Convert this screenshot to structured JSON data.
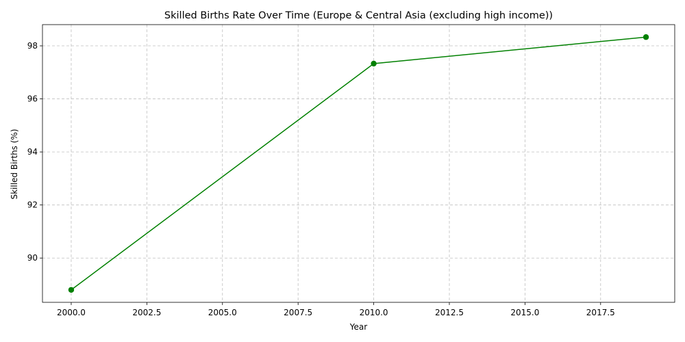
{
  "chart_data": {
    "type": "line",
    "title": "Skilled Births Rate Over Time (Europe & Central Asia (excluding high income))",
    "xlabel": "Year",
    "ylabel": "Skilled Births (%)",
    "x": [
      2000,
      2010,
      2019
    ],
    "series": [
      {
        "values": [
          88.8,
          97.33,
          98.33
        ]
      }
    ],
    "color": "#008000",
    "marker": "circle",
    "xlim": [
      1999.05,
      2019.95
    ],
    "ylim": [
      88.33,
      98.8
    ],
    "xticks": [
      2000,
      2002.5,
      2005,
      2007.5,
      2010,
      2012.5,
      2015,
      2017.5
    ],
    "xtick_labels": [
      "2000.0",
      "2002.5",
      "2005.0",
      "2007.5",
      "2010.0",
      "2012.5",
      "2015.0",
      "2017.5"
    ],
    "yticks": [
      90,
      92,
      94,
      96,
      98
    ],
    "ytick_labels": [
      "90",
      "92",
      "94",
      "96",
      "98"
    ],
    "grid": true
  }
}
